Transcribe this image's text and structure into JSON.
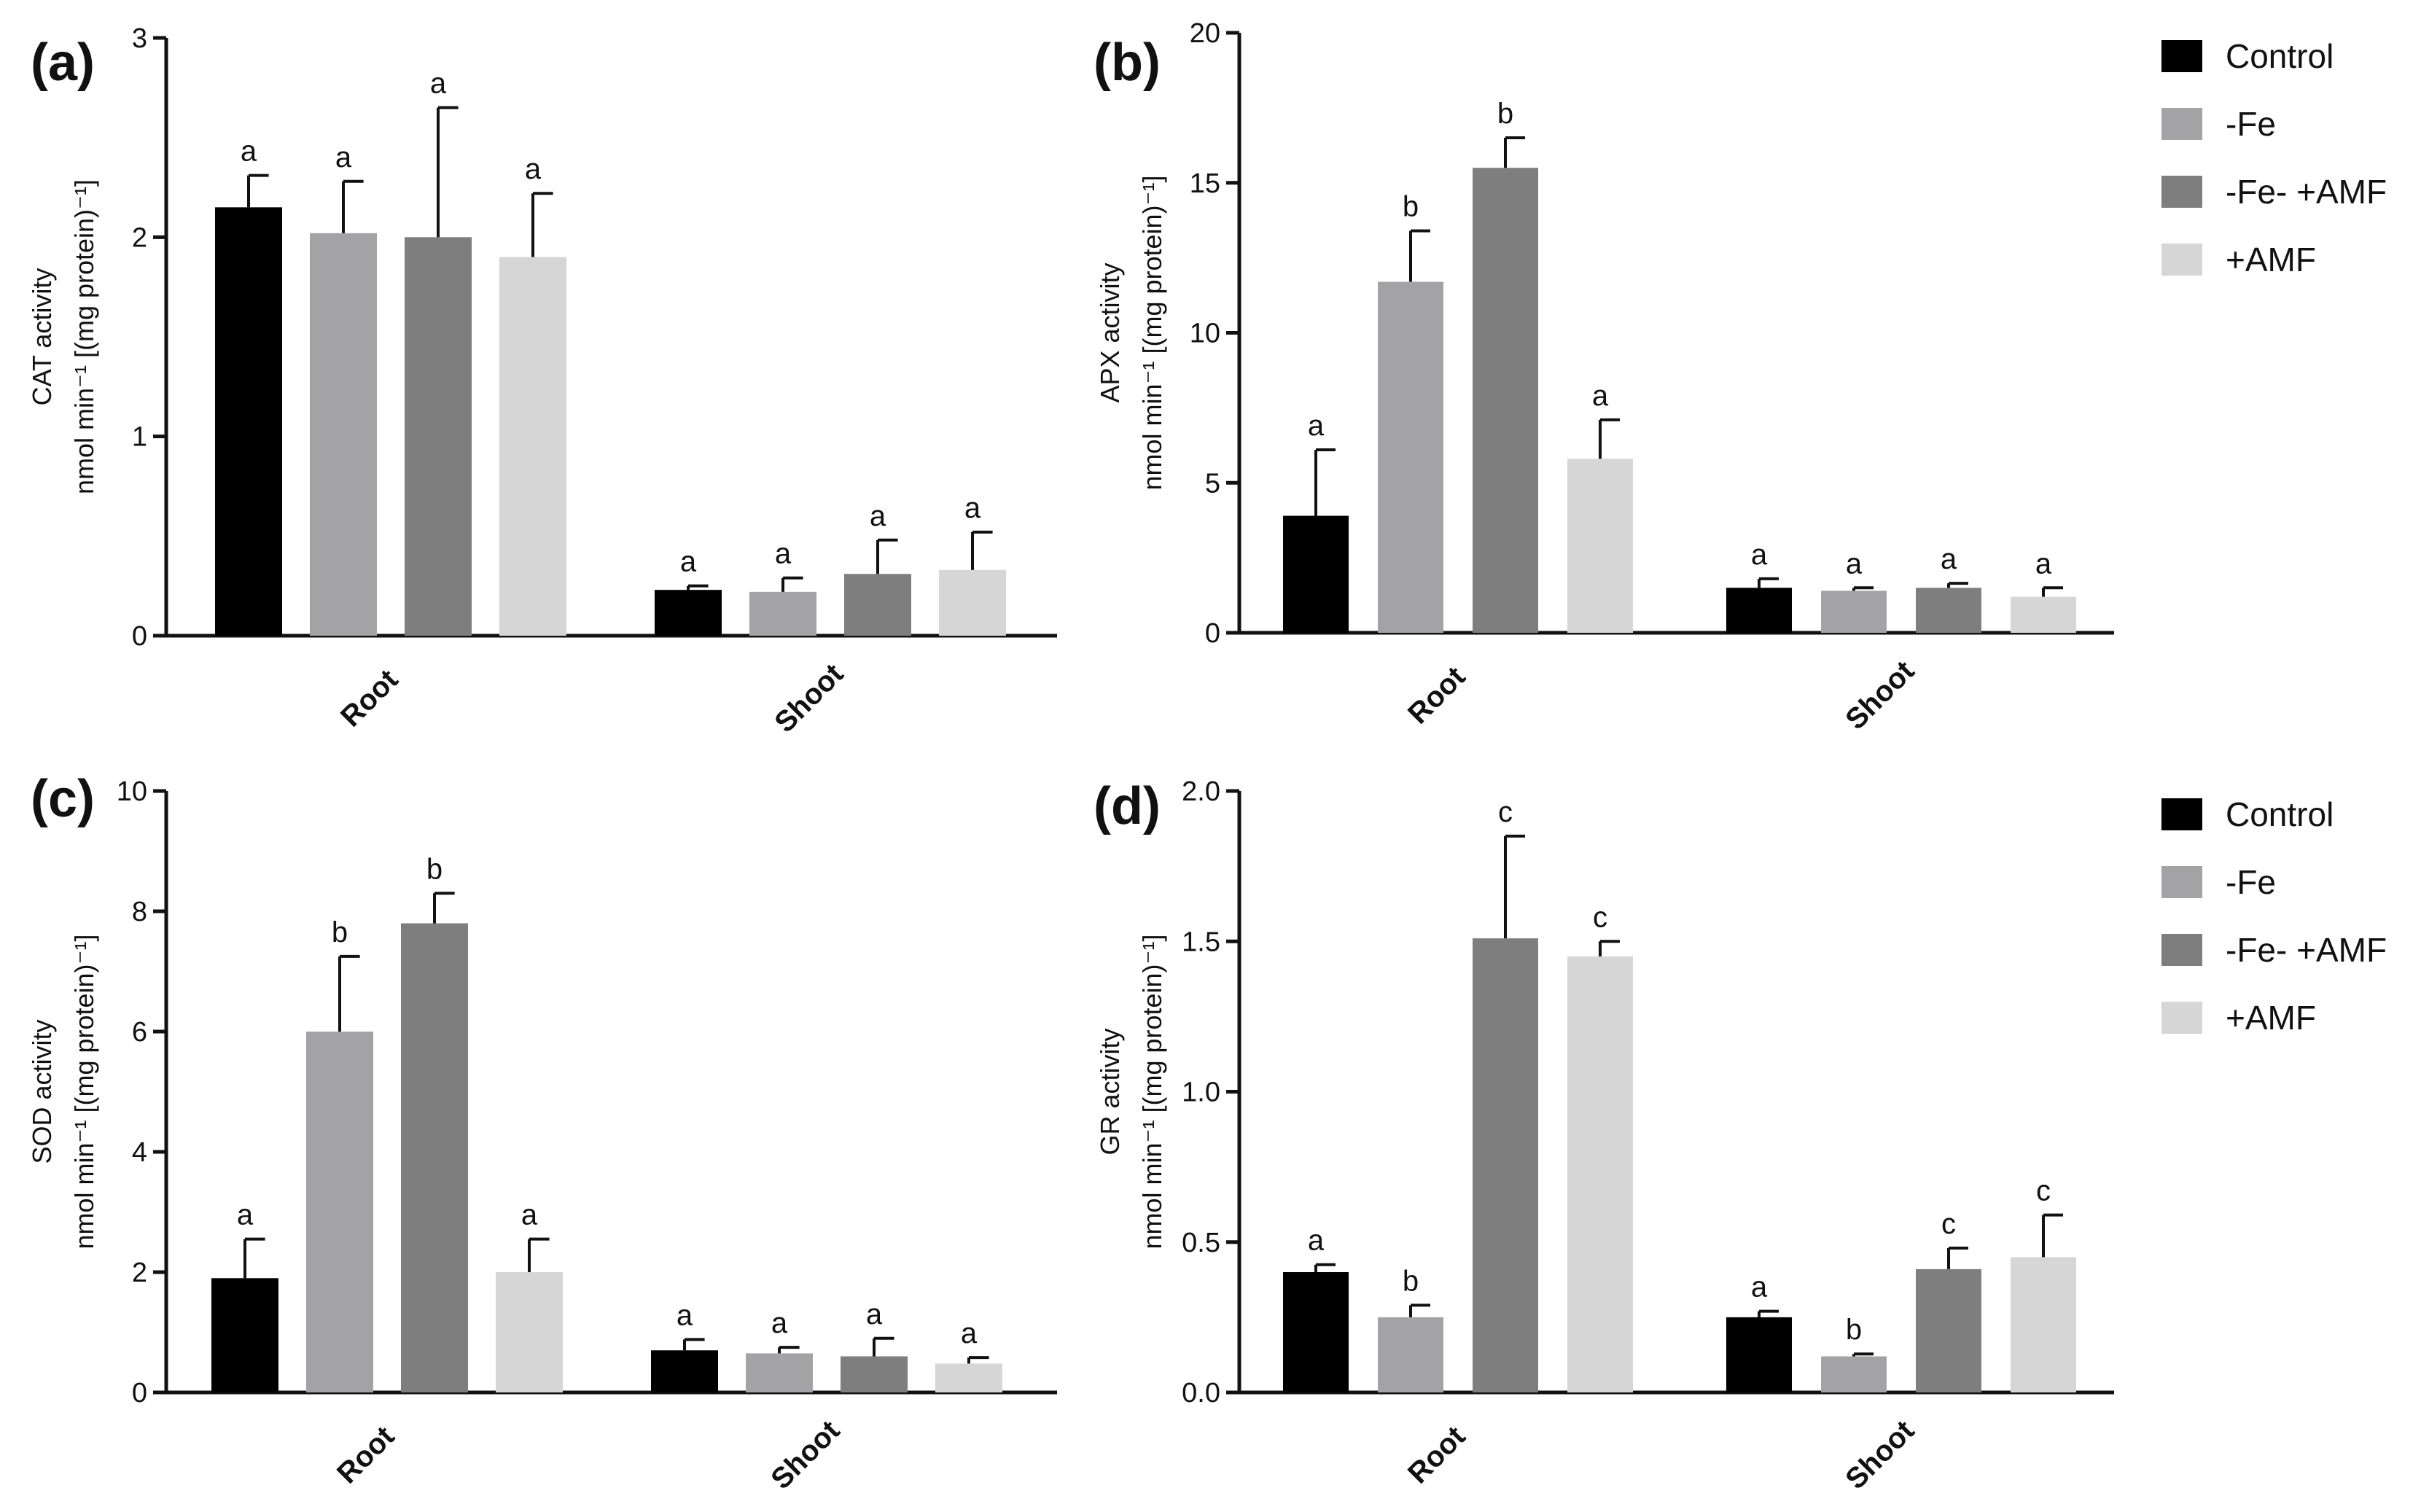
{
  "figure": {
    "legend": [
      {
        "name": "Control",
        "color": "#000000"
      },
      {
        "name": "-Fe",
        "color": "#a3a3a6"
      },
      {
        "name": "-Fe- +AMF",
        "color": "#7e7e7e"
      },
      {
        "name": "+AMF",
        "color": "#d6d6d6"
      }
    ]
  },
  "chart_data": [
    {
      "panel": "(a)",
      "type": "bar",
      "categories": [
        "Root",
        "Shoot"
      ],
      "ylabel_line1": "CAT activity",
      "ylabel_line2": "nmol min⁻¹ [(mg protein)⁻¹]",
      "ylim": [
        0,
        3
      ],
      "yticks": [
        "0",
        "1",
        "2",
        "3"
      ],
      "ytick_values": [
        0,
        1,
        2,
        3
      ],
      "series": [
        {
          "name": "Control",
          "values": [
            2.15,
            0.23
          ],
          "errors": [
            0.16,
            0.02
          ],
          "letters": [
            "a",
            "a"
          ]
        },
        {
          "name": "-Fe",
          "values": [
            2.02,
            0.22
          ],
          "errors": [
            0.26,
            0.07
          ],
          "letters": [
            "a",
            "a"
          ]
        },
        {
          "name": "-Fe- +AMF",
          "values": [
            2.0,
            0.31
          ],
          "errors": [
            0.65,
            0.17
          ],
          "letters": [
            "a",
            "a"
          ]
        },
        {
          "name": "+AMF",
          "values": [
            1.9,
            0.33
          ],
          "errors": [
            0.32,
            0.19
          ],
          "letters": [
            "a",
            "a"
          ]
        }
      ]
    },
    {
      "panel": "(b)",
      "type": "bar",
      "categories": [
        "Root",
        "Shoot"
      ],
      "ylabel_line1": "APX activity",
      "ylabel_line2": "nmol min⁻¹ [(mg protein)⁻¹]",
      "ylim": [
        0,
        20
      ],
      "yticks": [
        "0",
        "5",
        "10",
        "15",
        "20"
      ],
      "ytick_values": [
        0,
        5,
        10,
        15,
        20
      ],
      "series": [
        {
          "name": "Control",
          "values": [
            3.9,
            1.5
          ],
          "errors": [
            2.2,
            0.3
          ],
          "letters": [
            "a",
            "a"
          ]
        },
        {
          "name": "-Fe",
          "values": [
            11.7,
            1.4
          ],
          "errors": [
            1.7,
            0.1
          ],
          "letters": [
            "b",
            "a"
          ]
        },
        {
          "name": "-Fe- +AMF",
          "values": [
            15.5,
            1.5
          ],
          "errors": [
            1.0,
            0.15
          ],
          "letters": [
            "b",
            "a"
          ]
        },
        {
          "name": "+AMF",
          "values": [
            5.8,
            1.2
          ],
          "errors": [
            1.3,
            0.3
          ],
          "letters": [
            "a",
            "a"
          ]
        }
      ]
    },
    {
      "panel": "(c)",
      "type": "bar",
      "categories": [
        "Root",
        "Shoot"
      ],
      "ylabel_line1": "SOD activity",
      "ylabel_line2": "nmol min⁻¹ [(mg protein)⁻¹]",
      "ylim": [
        0,
        10
      ],
      "yticks": [
        "0",
        "2",
        "4",
        "6",
        "8",
        "10"
      ],
      "ytick_values": [
        0,
        2,
        4,
        6,
        8,
        10
      ],
      "series": [
        {
          "name": "Control",
          "values": [
            1.9,
            0.7
          ],
          "errors": [
            0.65,
            0.18
          ],
          "letters": [
            "a",
            "a"
          ]
        },
        {
          "name": "-Fe",
          "values": [
            6.0,
            0.65
          ],
          "errors": [
            1.25,
            0.1
          ],
          "letters": [
            "b",
            "a"
          ]
        },
        {
          "name": "-Fe- +AMF",
          "values": [
            7.8,
            0.6
          ],
          "errors": [
            0.5,
            0.3
          ],
          "letters": [
            "b",
            "a"
          ]
        },
        {
          "name": "+AMF",
          "values": [
            2.0,
            0.48
          ],
          "errors": [
            0.55,
            0.1
          ],
          "letters": [
            "a",
            "a"
          ]
        }
      ]
    },
    {
      "panel": "(d)",
      "type": "bar",
      "categories": [
        "Root",
        "Shoot"
      ],
      "ylabel_line1": "GR activity",
      "ylabel_line2": "nmol min⁻¹ [(mg protein)⁻¹]",
      "ylim": [
        0,
        2.0
      ],
      "yticks": [
        "0.0",
        "0.5",
        "1.0",
        "1.5",
        "2.0"
      ],
      "ytick_values": [
        0,
        0.5,
        1.0,
        1.5,
        2.0
      ],
      "series": [
        {
          "name": "Control",
          "values": [
            0.4,
            0.25
          ],
          "errors": [
            0.025,
            0.02
          ],
          "letters": [
            "a",
            "a"
          ]
        },
        {
          "name": "-Fe",
          "values": [
            0.25,
            0.12
          ],
          "errors": [
            0.04,
            0.008
          ],
          "letters": [
            "b",
            "b"
          ]
        },
        {
          "name": "-Fe- +AMF",
          "values": [
            1.51,
            0.41
          ],
          "errors": [
            0.34,
            0.07
          ],
          "letters": [
            "c",
            "c"
          ]
        },
        {
          "name": "+AMF",
          "values": [
            1.45,
            0.45
          ],
          "errors": [
            0.05,
            0.14
          ],
          "letters": [
            "c",
            "c"
          ]
        }
      ]
    }
  ]
}
